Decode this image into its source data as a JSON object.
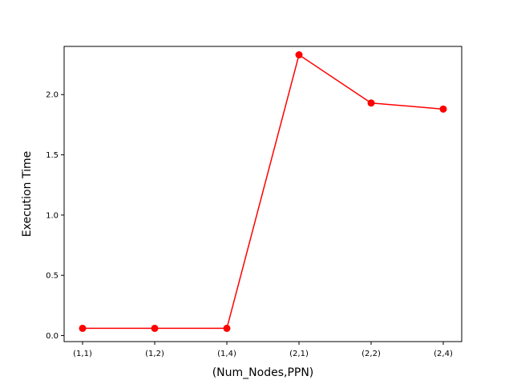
{
  "chart_data": {
    "type": "line",
    "title": "",
    "xlabel": "(Num_Nodes,PPN)",
    "ylabel": "Execution Time",
    "categories": [
      "(1,1)",
      "(1,2)",
      "(1,4)",
      "(2,1)",
      "(2,2)",
      "(2,4)"
    ],
    "series": [
      {
        "values": [
          0.06,
          0.06,
          0.06,
          2.33,
          1.93,
          1.88
        ],
        "color": "#ff0000",
        "marker": "circle"
      }
    ],
    "ylim": [
      -0.05,
      2.4
    ],
    "yticks": [
      0.0,
      0.5,
      1.0,
      1.5,
      2.0
    ],
    "ytick_labels": [
      "0.0",
      "0.5",
      "1.0",
      "1.5",
      "2.0"
    ],
    "grid": false
  }
}
